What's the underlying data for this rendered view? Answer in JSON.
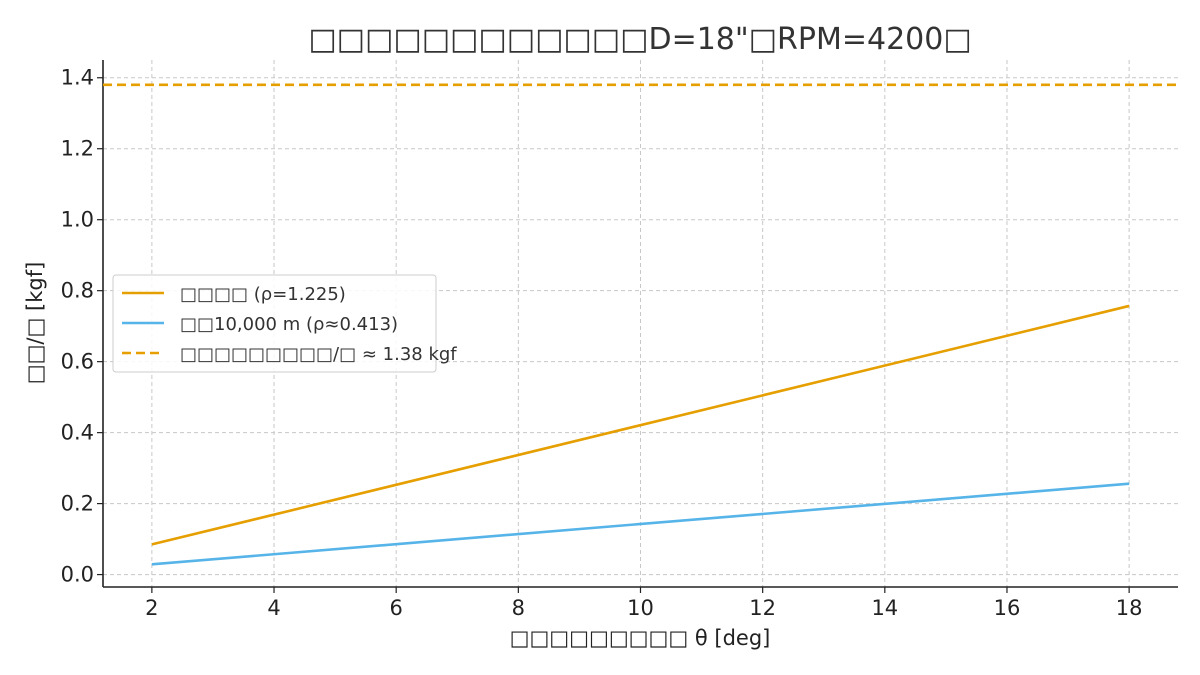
{
  "chart_data": {
    "type": "line",
    "title": "□□□□□□□□□□□□D=18\"□RPM=4200□",
    "xlabel": "□□□□□□□□□ θ [deg]",
    "ylabel": "□□/□ [kgf]",
    "xlim": [
      1.2,
      18.8
    ],
    "ylim": [
      -0.035,
      1.45
    ],
    "xticks": [
      2,
      4,
      6,
      8,
      10,
      12,
      14,
      16,
      18
    ],
    "yticks": [
      0.0,
      0.2,
      0.4,
      0.6,
      0.8,
      1.0,
      1.2,
      1.4
    ],
    "ytick_labels": [
      "0.0",
      "0.2",
      "0.4",
      "0.6",
      "0.8",
      "1.0",
      "1.2",
      "1.4"
    ],
    "grid": true,
    "legend_position": "center-left",
    "series": [
      {
        "name": "□□□□ (ρ=1.225)",
        "color": "#E69F00",
        "style": "solid",
        "x": [
          2,
          18
        ],
        "y": [
          0.085,
          0.757
        ]
      },
      {
        "name": "□□10,000 m (ρ≈0.413)",
        "color": "#56B4E9",
        "style": "solid",
        "x": [
          2,
          18
        ],
        "y": [
          0.029,
          0.256
        ]
      },
      {
        "name": "□□□□□□□□□/□ ≈ 1.38 kgf",
        "color": "#E69F00",
        "style": "dashed",
        "hline": 1.38
      }
    ]
  }
}
